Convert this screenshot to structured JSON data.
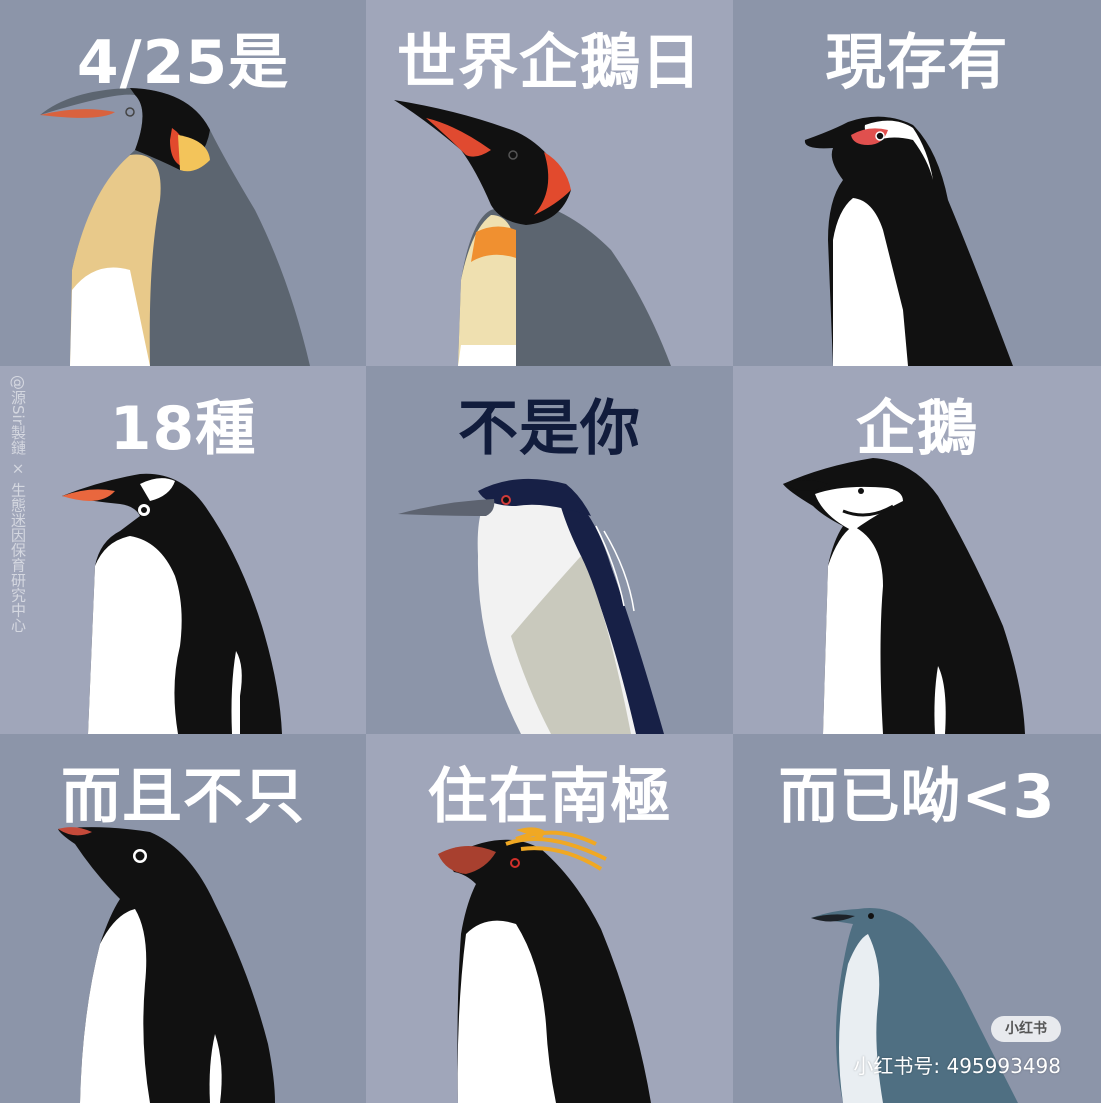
{
  "captions": {
    "p1": "4/25是",
    "p2": "世界企鵝日",
    "p3": "現存有",
    "p4": "18種",
    "p5": "不是你",
    "p6": "企鵝",
    "p7": "而且不只",
    "p8": "住在南極",
    "p9": "而已呦<3"
  },
  "watermark": "@源Sir製鏈 × 生態迷因保育研究中心",
  "xiaohongshu": {
    "badge": "小红书",
    "id_text": "小红书号: 495993498"
  },
  "colors": {
    "bg_a": "#8e97aa",
    "bg_b": "#a0a6ba",
    "caption_light": "#ffffff",
    "caption_dark": "#111c3c"
  }
}
